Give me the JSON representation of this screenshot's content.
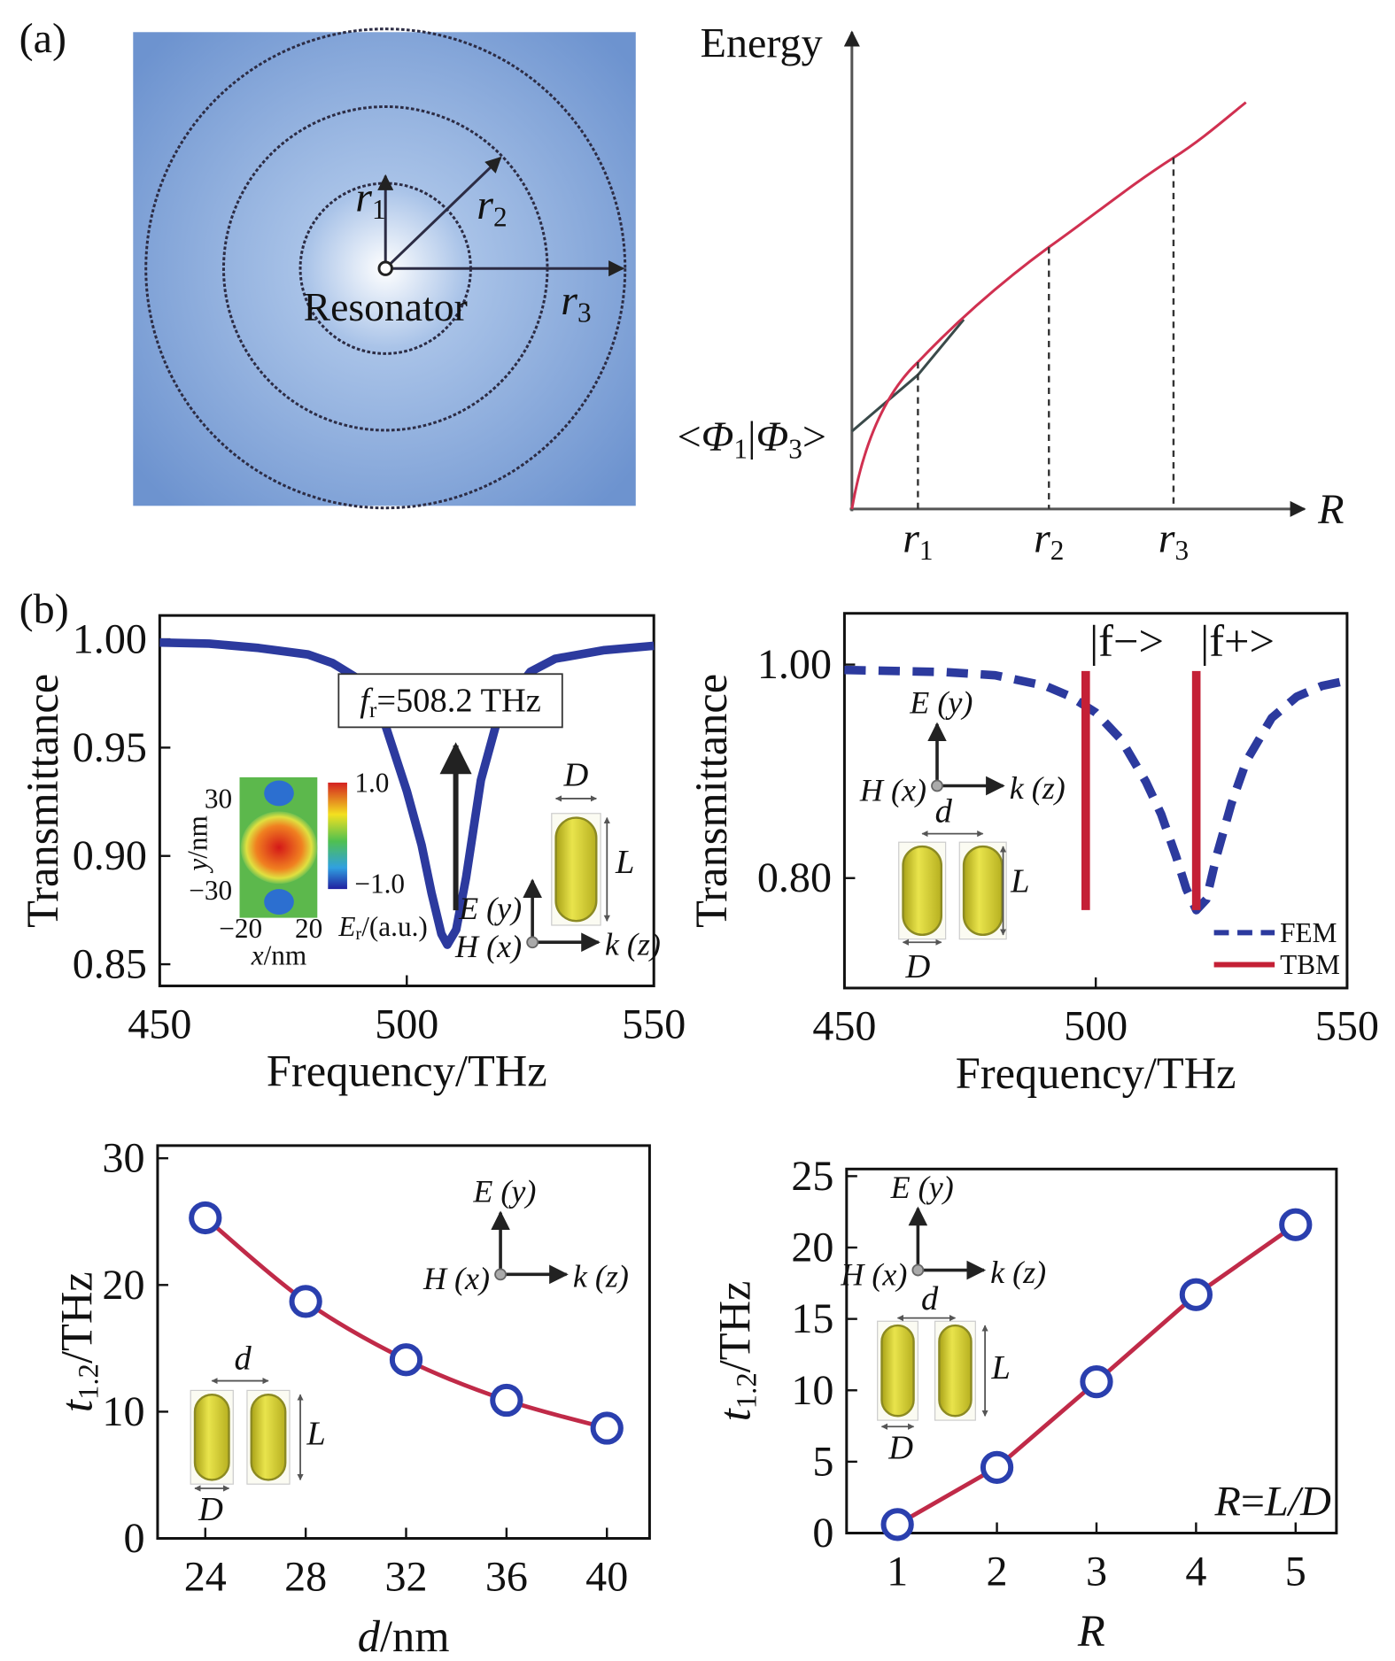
{
  "panel_labels": [
    "(a)",
    "(b)"
  ],
  "diagram": {
    "resonator": "Resonator",
    "radii": [
      [
        {
          "text": "r",
          "style": "italic"
        },
        {
          "text": "1",
          "style": "sub"
        }
      ],
      [
        {
          "text": "r",
          "style": "italic"
        },
        {
          "text": "2",
          "style": "sub"
        }
      ],
      [
        {
          "text": "r",
          "style": "italic"
        },
        {
          "text": "3",
          "style": "sub"
        }
      ]
    ],
    "energy_axis": [
      {
        "text": "Energy"
      }
    ],
    "r_axis": [
      {
        "text": "R",
        "style": "italic"
      }
    ],
    "r_ticks": [
      [
        {
          "text": "r",
          "style": "italic"
        },
        {
          "text": "1",
          "style": "sub"
        }
      ],
      [
        {
          "text": "r",
          "style": "italic"
        },
        {
          "text": "2",
          "style": "sub"
        }
      ],
      [
        {
          "text": "r",
          "style": "italic"
        },
        {
          "text": "3",
          "style": "sub"
        }
      ]
    ],
    "overlap": [
      {
        "text": "<"
      },
      {
        "text": "Φ",
        "style": "italic"
      },
      {
        "text": "1",
        "style": "sub"
      },
      {
        "text": "|"
      },
      {
        "text": "Φ",
        "style": "italic"
      },
      {
        "text": "3",
        "style": "sub"
      },
      {
        "text": ">"
      }
    ]
  },
  "chart_data": [
    {
      "type": "line",
      "y_label": [
        {
          "text": "Transmittance"
        }
      ],
      "x_label": [
        {
          "text": "Frequency/THz"
        }
      ],
      "xlim": [
        450,
        550
      ],
      "xticks": [
        450,
        500,
        550
      ],
      "ylim": [
        0.84,
        1.011
      ],
      "yticks": [
        {
          "value": 1,
          "label": "1.00"
        },
        0.95,
        {
          "value": 0.9,
          "label": "0.90"
        },
        0.85
      ],
      "x": [
        450,
        460,
        470,
        480,
        485,
        490,
        495,
        500,
        503,
        505,
        507,
        508.2,
        510,
        512,
        515,
        518,
        520,
        525,
        530,
        540,
        550
      ],
      "series": [
        {
          "color": "#2c3a9e",
          "values": [
            0.9985,
            0.998,
            0.996,
            0.993,
            0.989,
            0.982,
            0.965,
            0.93,
            0.905,
            0.883,
            0.864,
            0.859,
            0.866,
            0.89,
            0.935,
            0.96,
            0.97,
            0.985,
            0.991,
            0.995,
            0.997
          ]
        }
      ],
      "annotation": [
        {
          "text": "f",
          "style": "italic"
        },
        {
          "text": "r",
          "style": "sub"
        },
        {
          "text": "=508.2 THz"
        }
      ],
      "inset": {
        "E": "E (y)",
        "H": "H (x)",
        "k": "k (z)",
        "D": "D",
        "L": "L",
        "colormap": {
          "y_ticks": [
            "30",
            "−30"
          ],
          "x_ticks": [
            "−20",
            "20"
          ],
          "y_label": [
            {
              "text": "y",
              "style": "italic"
            },
            {
              "text": "/nm"
            }
          ],
          "x_label": [
            {
              "text": "x",
              "style": "italic"
            },
            {
              "text": "/nm"
            }
          ],
          "scale_ticks": [
            "1.0",
            "−1.0"
          ],
          "scale_label": [
            {
              "text": "E",
              "style": "italic"
            },
            {
              "text": "r",
              "style": "sub"
            },
            {
              "text": "/(a.u.)"
            }
          ]
        }
      }
    },
    {
      "type": "line",
      "y_label": [
        {
          "text": "Transmittance"
        }
      ],
      "x_label": [
        {
          "text": "Frequency/THz"
        }
      ],
      "xlim": [
        450,
        550
      ],
      "xticks": [
        450,
        500,
        550
      ],
      "ylim": [
        0.697,
        1.048
      ],
      "yticks": [
        {
          "value": 1,
          "label": "1.00"
        },
        {
          "value": 0.8,
          "label": "0.80"
        }
      ],
      "x": [
        450,
        460,
        470,
        480,
        490,
        495,
        500,
        505,
        510,
        513,
        516,
        518,
        520,
        522,
        524,
        527,
        530,
        535,
        540,
        545,
        550
      ],
      "legend": "lower right",
      "annotations": [
        "|f−>",
        "|f+>"
      ],
      "series": [
        {
          "name": "FEM",
          "color": "#2c3a9e",
          "line_style": "dashed",
          "values": [
            0.995,
            0.994,
            0.993,
            0.99,
            0.98,
            0.97,
            0.955,
            0.93,
            0.89,
            0.86,
            0.82,
            0.79,
            0.77,
            0.78,
            0.82,
            0.87,
            0.91,
            0.95,
            0.97,
            0.98,
            0.985
          ]
        },
        {
          "name": "TBM",
          "color": "#c42036",
          "line_style": "solid",
          "x": [
            498,
            498,
            null,
            520,
            520
          ],
          "values": [
            0.994,
            0.77,
            null,
            0.994,
            0.77
          ]
        }
      ],
      "inset": {
        "E": "E (y)",
        "H": "H (x)",
        "k": "k (z)",
        "d": "d",
        "D": "D",
        "L": "L"
      }
    },
    {
      "type": "line",
      "y_label": [
        {
          "text": "t",
          "style": "italic"
        },
        {
          "text": "1.2",
          "style": "sub"
        },
        {
          "text": "/THz"
        }
      ],
      "x_label": [
        {
          "text": "d",
          "style": "italic"
        },
        {
          "text": "/nm"
        }
      ],
      "xlim": [
        22.1,
        41.7
      ],
      "xticks": [
        24,
        28,
        32,
        36,
        40
      ],
      "ylim": [
        0,
        31
      ],
      "yticks": [
        0,
        10,
        20,
        30
      ],
      "x": [
        24,
        28,
        32,
        36,
        40
      ],
      "series": [
        {
          "color": "#c02a48",
          "marker": "open-circle",
          "marker_color": "#2a3fae",
          "smooth": true,
          "values": [
            25.3,
            18.7,
            14.1,
            10.9,
            8.7
          ]
        }
      ],
      "inset": {
        "E": "E (y)",
        "H": "H (x)",
        "k": "k (z)",
        "d": "d",
        "D": "D",
        "L": "L"
      }
    },
    {
      "type": "line",
      "y_label": [
        {
          "text": "t",
          "style": "italic"
        },
        {
          "text": "1.2",
          "style": "sub"
        },
        {
          "text": "/THz"
        }
      ],
      "x_label": [
        {
          "text": "R",
          "style": "italic"
        }
      ],
      "xlim": [
        0.49,
        5.41
      ],
      "xticks": [
        1,
        2,
        3,
        4,
        5
      ],
      "ylim": [
        0,
        25.5
      ],
      "yticks": [
        0,
        5,
        10,
        15,
        20,
        25
      ],
      "x": [
        1,
        2,
        3,
        4,
        5
      ],
      "series": [
        {
          "color": "#c02a48",
          "marker": "open-circle",
          "marker_color": "#2a3fae",
          "smooth": false,
          "values": [
            0.6,
            4.6,
            10.6,
            16.7,
            21.6
          ]
        }
      ],
      "annotation": [
        {
          "text": "R",
          "style": "italic"
        },
        {
          "text": "="
        },
        {
          "text": "L/D",
          "style": "italic"
        }
      ],
      "inset": {
        "E": "E (y)",
        "H": "H (x)",
        "k": "k (z)",
        "d": "d",
        "D": "D",
        "L": "L"
      }
    }
  ]
}
